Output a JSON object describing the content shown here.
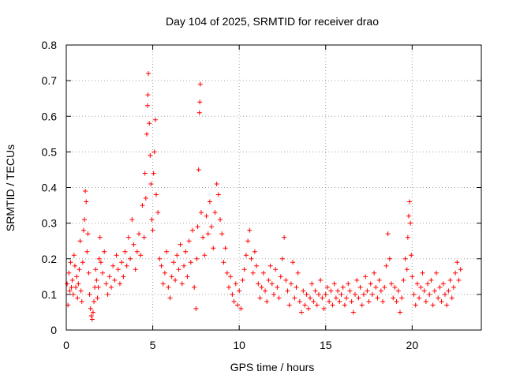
{
  "chart_data": {
    "type": "scatter",
    "title": "Day 104 of 2025, SRMTID for receiver drao",
    "xlabel": "GPS time / hours",
    "ylabel": "SRMTID / TECUs",
    "xlim": [
      0,
      24
    ],
    "ylim": [
      0,
      0.8
    ],
    "xticks": [
      0,
      5,
      10,
      15,
      20
    ],
    "xtick_labels": [
      "0",
      "5",
      "10",
      "15",
      "20"
    ],
    "yticks": [
      0,
      0.1,
      0.2,
      0.3,
      0.4,
      0.5,
      0.6,
      0.7,
      0.8
    ],
    "ytick_labels": [
      "0",
      "0.1",
      "0.2",
      "0.3",
      "0.4",
      "0.5",
      "0.6",
      "0.7",
      "0.8"
    ],
    "grid": true,
    "marker": "plus",
    "color": "#ff0000",
    "series": [
      {
        "name": "SRMTID",
        "points": [
          [
            0.05,
            0.13
          ],
          [
            0.1,
            0.07
          ],
          [
            0.15,
            0.16
          ],
          [
            0.2,
            0.11
          ],
          [
            0.25,
            0.19
          ],
          [
            0.3,
            0.12
          ],
          [
            0.35,
            0.14
          ],
          [
            0.4,
            0.1
          ],
          [
            0.45,
            0.21
          ],
          [
            0.5,
            0.18
          ],
          [
            0.55,
            0.12
          ],
          [
            0.6,
            0.15
          ],
          [
            0.65,
            0.09
          ],
          [
            0.7,
            0.13
          ],
          [
            0.75,
            0.17
          ],
          [
            0.8,
            0.25
          ],
          [
            0.85,
            0.11
          ],
          [
            0.9,
            0.08
          ],
          [
            0.95,
            0.19
          ],
          [
            1.0,
            0.28
          ],
          [
            1.05,
            0.31
          ],
          [
            1.1,
            0.39
          ],
          [
            1.15,
            0.36
          ],
          [
            1.2,
            0.22
          ],
          [
            1.25,
            0.27
          ],
          [
            1.3,
            0.16
          ],
          [
            1.35,
            0.1
          ],
          [
            1.4,
            0.06
          ],
          [
            1.45,
            0.04
          ],
          [
            1.5,
            0.03
          ],
          [
            1.55,
            0.05
          ],
          [
            1.6,
            0.08
          ],
          [
            1.65,
            0.12
          ],
          [
            1.7,
            0.17
          ],
          [
            1.75,
            0.14
          ],
          [
            1.8,
            0.09
          ],
          [
            1.85,
            0.12
          ],
          [
            1.9,
            0.2
          ],
          [
            1.95,
            0.26
          ],
          [
            2.0,
            0.19
          ],
          [
            2.1,
            0.16
          ],
          [
            2.2,
            0.22
          ],
          [
            2.3,
            0.13
          ],
          [
            2.4,
            0.1
          ],
          [
            2.5,
            0.15
          ],
          [
            2.6,
            0.12
          ],
          [
            2.7,
            0.18
          ],
          [
            2.8,
            0.14
          ],
          [
            2.9,
            0.21
          ],
          [
            3.0,
            0.17
          ],
          [
            3.1,
            0.13
          ],
          [
            3.2,
            0.19
          ],
          [
            3.3,
            0.15
          ],
          [
            3.4,
            0.22
          ],
          [
            3.5,
            0.18
          ],
          [
            3.6,
            0.26
          ],
          [
            3.7,
            0.2
          ],
          [
            3.8,
            0.31
          ],
          [
            3.9,
            0.24
          ],
          [
            4.0,
            0.17
          ],
          [
            4.1,
            0.22
          ],
          [
            4.2,
            0.27
          ],
          [
            4.3,
            0.21
          ],
          [
            4.4,
            0.35
          ],
          [
            4.5,
            0.26
          ],
          [
            4.55,
            0.44
          ],
          [
            4.6,
            0.37
          ],
          [
            4.65,
            0.55
          ],
          [
            4.7,
            0.63
          ],
          [
            4.72,
            0.66
          ],
          [
            4.75,
            0.72
          ],
          [
            4.8,
            0.58
          ],
          [
            4.85,
            0.49
          ],
          [
            4.9,
            0.41
          ],
          [
            4.95,
            0.31
          ],
          [
            5.0,
            0.28
          ],
          [
            5.05,
            0.44
          ],
          [
            5.1,
            0.5
          ],
          [
            5.15,
            0.59
          ],
          [
            5.2,
            0.38
          ],
          [
            5.3,
            0.33
          ],
          [
            5.4,
            0.2
          ],
          [
            5.5,
            0.18
          ],
          [
            5.6,
            0.13
          ],
          [
            5.7,
            0.16
          ],
          [
            5.8,
            0.22
          ],
          [
            5.9,
            0.12
          ],
          [
            6.0,
            0.09
          ],
          [
            6.1,
            0.15
          ],
          [
            6.2,
            0.19
          ],
          [
            6.3,
            0.14
          ],
          [
            6.4,
            0.21
          ],
          [
            6.5,
            0.17
          ],
          [
            6.6,
            0.24
          ],
          [
            6.7,
            0.13
          ],
          [
            6.8,
            0.18
          ],
          [
            6.9,
            0.22
          ],
          [
            7.0,
            0.15
          ],
          [
            7.1,
            0.25
          ],
          [
            7.2,
            0.19
          ],
          [
            7.3,
            0.28
          ],
          [
            7.4,
            0.12
          ],
          [
            7.5,
            0.06
          ],
          [
            7.55,
            0.2
          ],
          [
            7.6,
            0.29
          ],
          [
            7.65,
            0.45
          ],
          [
            7.7,
            0.61
          ],
          [
            7.72,
            0.64
          ],
          [
            7.75,
            0.69
          ],
          [
            7.8,
            0.33
          ],
          [
            7.9,
            0.26
          ],
          [
            8.0,
            0.21
          ],
          [
            8.1,
            0.32
          ],
          [
            8.2,
            0.27
          ],
          [
            8.3,
            0.36
          ],
          [
            8.4,
            0.29
          ],
          [
            8.5,
            0.23
          ],
          [
            8.6,
            0.33
          ],
          [
            8.7,
            0.41
          ],
          [
            8.8,
            0.38
          ],
          [
            8.9,
            0.31
          ],
          [
            9.0,
            0.27
          ],
          [
            9.1,
            0.19
          ],
          [
            9.2,
            0.23
          ],
          [
            9.3,
            0.16
          ],
          [
            9.4,
            0.12
          ],
          [
            9.5,
            0.15
          ],
          [
            9.6,
            0.1
          ],
          [
            9.7,
            0.08
          ],
          [
            9.8,
            0.13
          ],
          [
            9.9,
            0.07
          ],
          [
            10.0,
            0.11
          ],
          [
            10.1,
            0.06
          ],
          [
            10.2,
            0.14
          ],
          [
            10.3,
            0.17
          ],
          [
            10.4,
            0.21
          ],
          [
            10.5,
            0.25
          ],
          [
            10.6,
            0.28
          ],
          [
            10.7,
            0.2
          ],
          [
            10.8,
            0.16
          ],
          [
            10.9,
            0.22
          ],
          [
            11.0,
            0.18
          ],
          [
            11.1,
            0.13
          ],
          [
            11.2,
            0.09
          ],
          [
            11.3,
            0.12
          ],
          [
            11.4,
            0.16
          ],
          [
            11.5,
            0.11
          ],
          [
            11.6,
            0.08
          ],
          [
            11.7,
            0.14
          ],
          [
            11.8,
            0.18
          ],
          [
            11.9,
            0.13
          ],
          [
            12.0,
            0.1
          ],
          [
            12.1,
            0.17
          ],
          [
            12.2,
            0.12
          ],
          [
            12.3,
            0.09
          ],
          [
            12.4,
            0.15
          ],
          [
            12.5,
            0.2
          ],
          [
            12.6,
            0.26
          ],
          [
            12.7,
            0.14
          ],
          [
            12.8,
            0.11
          ],
          [
            12.9,
            0.07
          ],
          [
            13.0,
            0.13
          ],
          [
            13.1,
            0.19
          ],
          [
            13.2,
            0.09
          ],
          [
            13.3,
            0.12
          ],
          [
            13.4,
            0.16
          ],
          [
            13.5,
            0.08
          ],
          [
            13.6,
            0.05
          ],
          [
            13.7,
            0.11
          ],
          [
            13.8,
            0.07
          ],
          [
            13.9,
            0.1
          ],
          [
            14.0,
            0.06
          ],
          [
            14.1,
            0.09
          ],
          [
            14.2,
            0.13
          ],
          [
            14.3,
            0.08
          ],
          [
            14.4,
            0.11
          ],
          [
            14.5,
            0.07
          ],
          [
            14.6,
            0.1
          ],
          [
            14.7,
            0.14
          ],
          [
            14.8,
            0.09
          ],
          [
            14.9,
            0.06
          ],
          [
            15.0,
            0.1
          ],
          [
            15.1,
            0.12
          ],
          [
            15.2,
            0.08
          ],
          [
            15.3,
            0.11
          ],
          [
            15.4,
            0.07
          ],
          [
            15.5,
            0.13
          ],
          [
            15.6,
            0.09
          ],
          [
            15.7,
            0.11
          ],
          [
            15.8,
            0.08
          ],
          [
            15.9,
            0.1
          ],
          [
            16.0,
            0.12
          ],
          [
            16.1,
            0.07
          ],
          [
            16.2,
            0.09
          ],
          [
            16.3,
            0.13
          ],
          [
            16.4,
            0.11
          ],
          [
            16.5,
            0.08
          ],
          [
            16.6,
            0.05
          ],
          [
            16.7,
            0.1
          ],
          [
            16.8,
            0.14
          ],
          [
            16.9,
            0.09
          ],
          [
            17.0,
            0.12
          ],
          [
            17.1,
            0.07
          ],
          [
            17.2,
            0.1
          ],
          [
            17.3,
            0.15
          ],
          [
            17.4,
            0.11
          ],
          [
            17.5,
            0.08
          ],
          [
            17.6,
            0.13
          ],
          [
            17.7,
            0.1
          ],
          [
            17.8,
            0.16
          ],
          [
            17.9,
            0.12
          ],
          [
            18.0,
            0.09
          ],
          [
            18.1,
            0.14
          ],
          [
            18.2,
            0.11
          ],
          [
            18.3,
            0.08
          ],
          [
            18.4,
            0.12
          ],
          [
            18.5,
            0.18
          ],
          [
            18.6,
            0.27
          ],
          [
            18.7,
            0.2
          ],
          [
            18.8,
            0.13
          ],
          [
            18.9,
            0.09
          ],
          [
            19.0,
            0.12
          ],
          [
            19.1,
            0.08
          ],
          [
            19.2,
            0.11
          ],
          [
            19.3,
            0.05
          ],
          [
            19.4,
            0.09
          ],
          [
            19.5,
            0.14
          ],
          [
            19.6,
            0.2
          ],
          [
            19.7,
            0.17
          ],
          [
            19.75,
            0.26
          ],
          [
            19.8,
            0.32
          ],
          [
            19.85,
            0.36
          ],
          [
            19.9,
            0.3
          ],
          [
            19.95,
            0.21
          ],
          [
            20.0,
            0.15
          ],
          [
            20.1,
            0.1
          ],
          [
            20.2,
            0.07
          ],
          [
            20.3,
            0.13
          ],
          [
            20.4,
            0.09
          ],
          [
            20.5,
            0.12
          ],
          [
            20.6,
            0.16
          ],
          [
            20.7,
            0.11
          ],
          [
            20.8,
            0.08
          ],
          [
            20.9,
            0.13
          ],
          [
            21.0,
            0.1
          ],
          [
            21.1,
            0.14
          ],
          [
            21.2,
            0.07
          ],
          [
            21.3,
            0.11
          ],
          [
            21.4,
            0.16
          ],
          [
            21.5,
            0.09
          ],
          [
            21.6,
            0.12
          ],
          [
            21.7,
            0.08
          ],
          [
            21.8,
            0.13
          ],
          [
            21.9,
            0.1
          ],
          [
            22.0,
            0.07
          ],
          [
            22.1,
            0.11
          ],
          [
            22.2,
            0.14
          ],
          [
            22.3,
            0.09
          ],
          [
            22.4,
            0.12
          ],
          [
            22.5,
            0.16
          ],
          [
            22.6,
            0.19
          ],
          [
            22.7,
            0.14
          ],
          [
            22.8,
            0.17
          ]
        ]
      }
    ]
  }
}
